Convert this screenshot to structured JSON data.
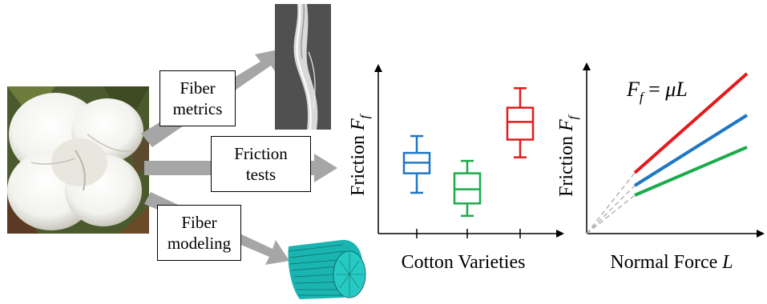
{
  "inputs": {
    "metrics": [
      "Fiber",
      "metrics"
    ],
    "tests": [
      "Friction",
      "tests"
    ],
    "modeling": [
      "Fiber",
      "modeling"
    ]
  },
  "colors": {
    "arrow": "#a6a6a6",
    "blue": "#1f77c4",
    "green": "#1aab4a",
    "red": "#e31a1c",
    "fiber_model": "#1ab5b0"
  },
  "chart_data": [
    {
      "type": "box",
      "xlabel": "Cotton Varieties",
      "ylabel": "Friction F_f",
      "series": [
        {
          "color": "#1f77c4",
          "whisker_low": 2.3,
          "q1": 3.4,
          "median": 4.0,
          "q3": 4.55,
          "whisker_high": 5.5
        },
        {
          "color": "#1aab4a",
          "whisker_low": 1.0,
          "q1": 1.7,
          "median": 2.5,
          "q3": 3.4,
          "whisker_high": 4.1
        },
        {
          "color": "#e31a1c",
          "whisker_low": 4.3,
          "q1": 5.3,
          "median": 6.3,
          "q3": 7.1,
          "whisker_high": 8.2
        }
      ]
    },
    {
      "type": "line",
      "xlabel": "Normal Force L",
      "ylabel": "Friction F_f",
      "annotation": "F_f = μL",
      "series": [
        {
          "color": "#e31a1c",
          "x_start": 0.3,
          "x_end": 1.0,
          "y_start": 0.38,
          "y_end": 1.0
        },
        {
          "color": "#1f77c4",
          "x_start": 0.3,
          "x_end": 1.0,
          "y_start": 0.3,
          "y_end": 0.74
        },
        {
          "color": "#1aab4a",
          "x_start": 0.3,
          "x_end": 1.0,
          "y_start": 0.24,
          "y_end": 0.54
        }
      ]
    }
  ]
}
